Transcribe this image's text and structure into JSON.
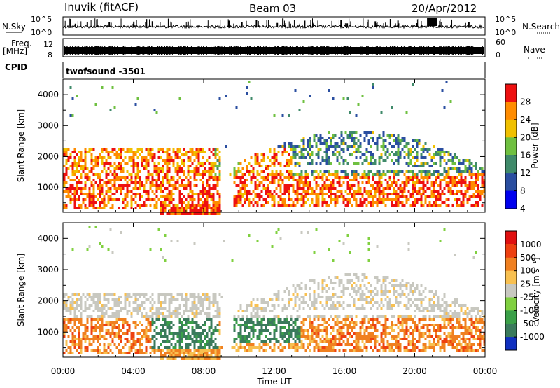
{
  "header": {
    "station": "Inuvik (fitACF)",
    "beam": "Beam 03",
    "date": "20/Apr/2012"
  },
  "sky_panel": {
    "left_label": "N.Sky",
    "right_label": "N.Search",
    "ticks": [
      "10^5",
      "10^0"
    ]
  },
  "freq_panel": {
    "left_label_top": "Freq.",
    "left_label_bottom": "[MHz]",
    "left_ticks": [
      "12",
      "8"
    ],
    "right_label": "Nave",
    "right_ticks": [
      "60",
      "0"
    ]
  },
  "cpid": {
    "label": "CPID",
    "value": "twofsound -3501"
  },
  "x_axis": {
    "label": "Time UT",
    "ticks": [
      "00:00",
      "04:00",
      "08:00",
      "12:00",
      "16:00",
      "20:00",
      "00:00"
    ]
  },
  "chart_data": [
    {
      "type": "heatmap",
      "name": "power",
      "x_range": [
        0,
        24
      ],
      "y_range": [
        200,
        4500
      ],
      "ylabel": "Slant Range [km]",
      "yticks": [
        1000,
        2000,
        3000,
        4000
      ],
      "colorbar_label": "Power [dB]",
      "colorbar_ticks": [
        "28",
        "24",
        "20",
        "16",
        "12",
        "8",
        "4"
      ],
      "colors": [
        "#0000ee",
        "#2a4ea0",
        "#3f8a6a",
        "#6fc040",
        "#f0c000",
        "#ff8c00",
        "#ee1010"
      ]
    },
    {
      "type": "heatmap",
      "name": "velocity",
      "x_range": [
        0,
        24
      ],
      "y_range": [
        200,
        4500
      ],
      "ylabel": "Slant Range [km]",
      "yticks": [
        1000,
        2000,
        3000,
        4000
      ],
      "colorbar_label": "Velocity [m s⁻¹]",
      "colorbar_ticks": [
        "1000",
        "500",
        "100",
        "25",
        "-25",
        "-100",
        "-500",
        "-1000"
      ],
      "colors": [
        "#1030c0",
        "#3a7a5c",
        "#3aa048",
        "#80d040",
        "#c8c8c0",
        "#f8c050",
        "#f08020",
        "#ee4010",
        "#e01010"
      ]
    }
  ]
}
